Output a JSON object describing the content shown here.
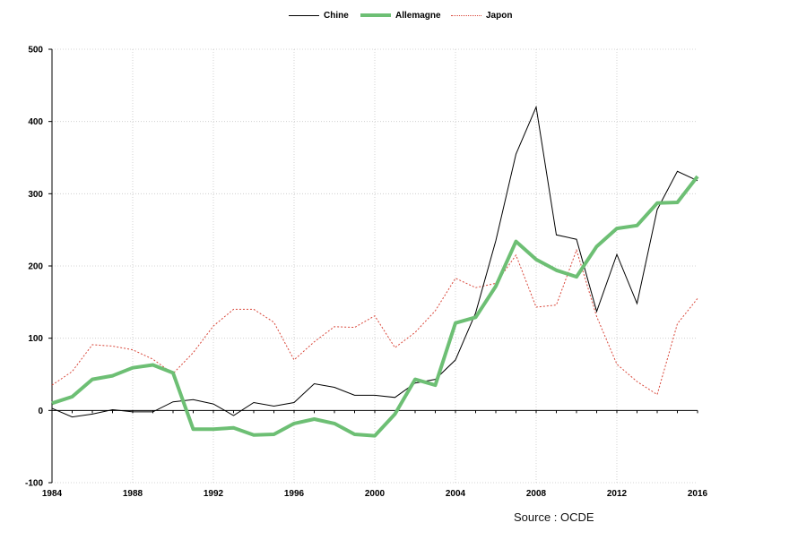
{
  "chart_data": {
    "type": "line",
    "title": "",
    "xlabel": "",
    "ylabel": "",
    "x": [
      1984,
      1985,
      1986,
      1987,
      1988,
      1989,
      1990,
      1991,
      1992,
      1993,
      1994,
      1995,
      1996,
      1997,
      1998,
      1999,
      2000,
      2001,
      2002,
      2003,
      2004,
      2005,
      2006,
      2007,
      2008,
      2009,
      2010,
      2011,
      2012,
      2013,
      2014,
      2015,
      2016
    ],
    "xticks": [
      1984,
      1988,
      1992,
      1996,
      2000,
      2004,
      2008,
      2012,
      2016
    ],
    "xlim": [
      1984,
      2016
    ],
    "ylim": [
      -100,
      500
    ],
    "yticks": [
      -100,
      0,
      100,
      200,
      300,
      400,
      500
    ],
    "grid": true,
    "legend_position": "top-center",
    "series": [
      {
        "name": "Chine",
        "color": "#000000",
        "style": "solid-thin",
        "values": [
          3,
          -9,
          -5,
          1,
          -2,
          -2,
          12,
          15,
          9,
          -7,
          11,
          6,
          11,
          37,
          32,
          21,
          21,
          18,
          38,
          43,
          70,
          135,
          235,
          355,
          420,
          243,
          237,
          137,
          216,
          148,
          278,
          331,
          318
        ]
      },
      {
        "name": "Allemagne",
        "color": "#6dbf74",
        "style": "solid-thick",
        "values": [
          10,
          19,
          43,
          48,
          59,
          63,
          52,
          -26,
          -26,
          -24,
          -34,
          -33,
          -18,
          -12,
          -18,
          -33,
          -35,
          -5,
          43,
          35,
          121,
          129,
          172,
          234,
          209,
          194,
          185,
          227,
          252,
          256,
          287,
          288,
          324
        ]
      },
      {
        "name": "Japon",
        "color": "#d9473a",
        "style": "dotted",
        "values": [
          35,
          54,
          91,
          89,
          84,
          71,
          51,
          80,
          117,
          140,
          140,
          122,
          70,
          95,
          116,
          115,
          131,
          87,
          108,
          138,
          183,
          170,
          176,
          215,
          143,
          146,
          222,
          130,
          64,
          40,
          22,
          120,
          155
        ]
      }
    ]
  },
  "source_text": "Source : OCDE"
}
